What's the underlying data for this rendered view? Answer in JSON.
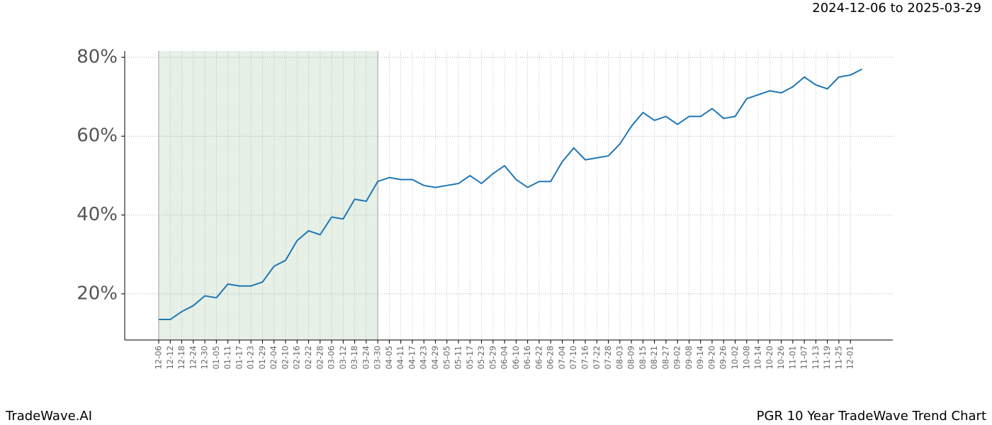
{
  "chart_data": {
    "type": "line",
    "header": "2024-12-06 to 2025-03-29",
    "footer_left": "TradeWave.AI",
    "footer_right": "PGR 10 Year TradeWave Trend Chart",
    "categories": [
      "12-06",
      "12-12",
      "12-18",
      "12-24",
      "12-30",
      "01-05",
      "01-11",
      "01-17",
      "01-23",
      "01-29",
      "02-04",
      "02-10",
      "02-16",
      "02-22",
      "02-28",
      "03-06",
      "03-12",
      "03-18",
      "03-24",
      "03-30",
      "04-05",
      "04-11",
      "04-17",
      "04-23",
      "04-29",
      "05-05",
      "05-11",
      "05-17",
      "05-23",
      "05-29",
      "06-04",
      "06-10",
      "06-16",
      "06-22",
      "06-28",
      "07-04",
      "07-10",
      "07-16",
      "07-22",
      "07-28",
      "08-03",
      "08-09",
      "08-15",
      "08-21",
      "08-27",
      "09-02",
      "09-08",
      "09-14",
      "09-20",
      "09-26",
      "10-02",
      "10-08",
      "10-14",
      "10-20",
      "10-26",
      "11-01",
      "11-07",
      "11-13",
      "11-19",
      "11-25",
      "12-01",
      null
    ],
    "values": [
      13.5,
      13.5,
      15.5,
      17,
      19.5,
      19,
      22.5,
      22,
      22,
      23,
      27,
      28.5,
      33.5,
      36,
      35,
      39.5,
      39,
      44,
      43.5,
      48.5,
      49.5,
      49,
      49,
      47.5,
      47,
      47.5,
      48,
      50,
      48,
      50.5,
      52.5,
      49,
      47,
      48.5,
      48.5,
      53.5,
      57,
      54,
      54.5,
      55,
      58,
      62.5,
      66,
      64,
      65,
      63,
      65,
      65,
      67,
      64.5,
      65,
      69.5,
      70.5,
      71.5,
      71,
      72.5,
      75,
      73,
      72,
      75,
      75.5,
      77
    ],
    "color": "#1f77b4",
    "highlight": {
      "from": "12-06",
      "to": "03-30",
      "color": "#e6f0e6"
    },
    "ylim": [
      8.3,
      81.6
    ],
    "yticks": [
      {
        "value": 20,
        "label": "20%"
      },
      {
        "value": 40,
        "label": "40%"
      },
      {
        "value": 60,
        "label": "60%"
      },
      {
        "value": 80,
        "label": "80%"
      }
    ],
    "grid": true
  }
}
